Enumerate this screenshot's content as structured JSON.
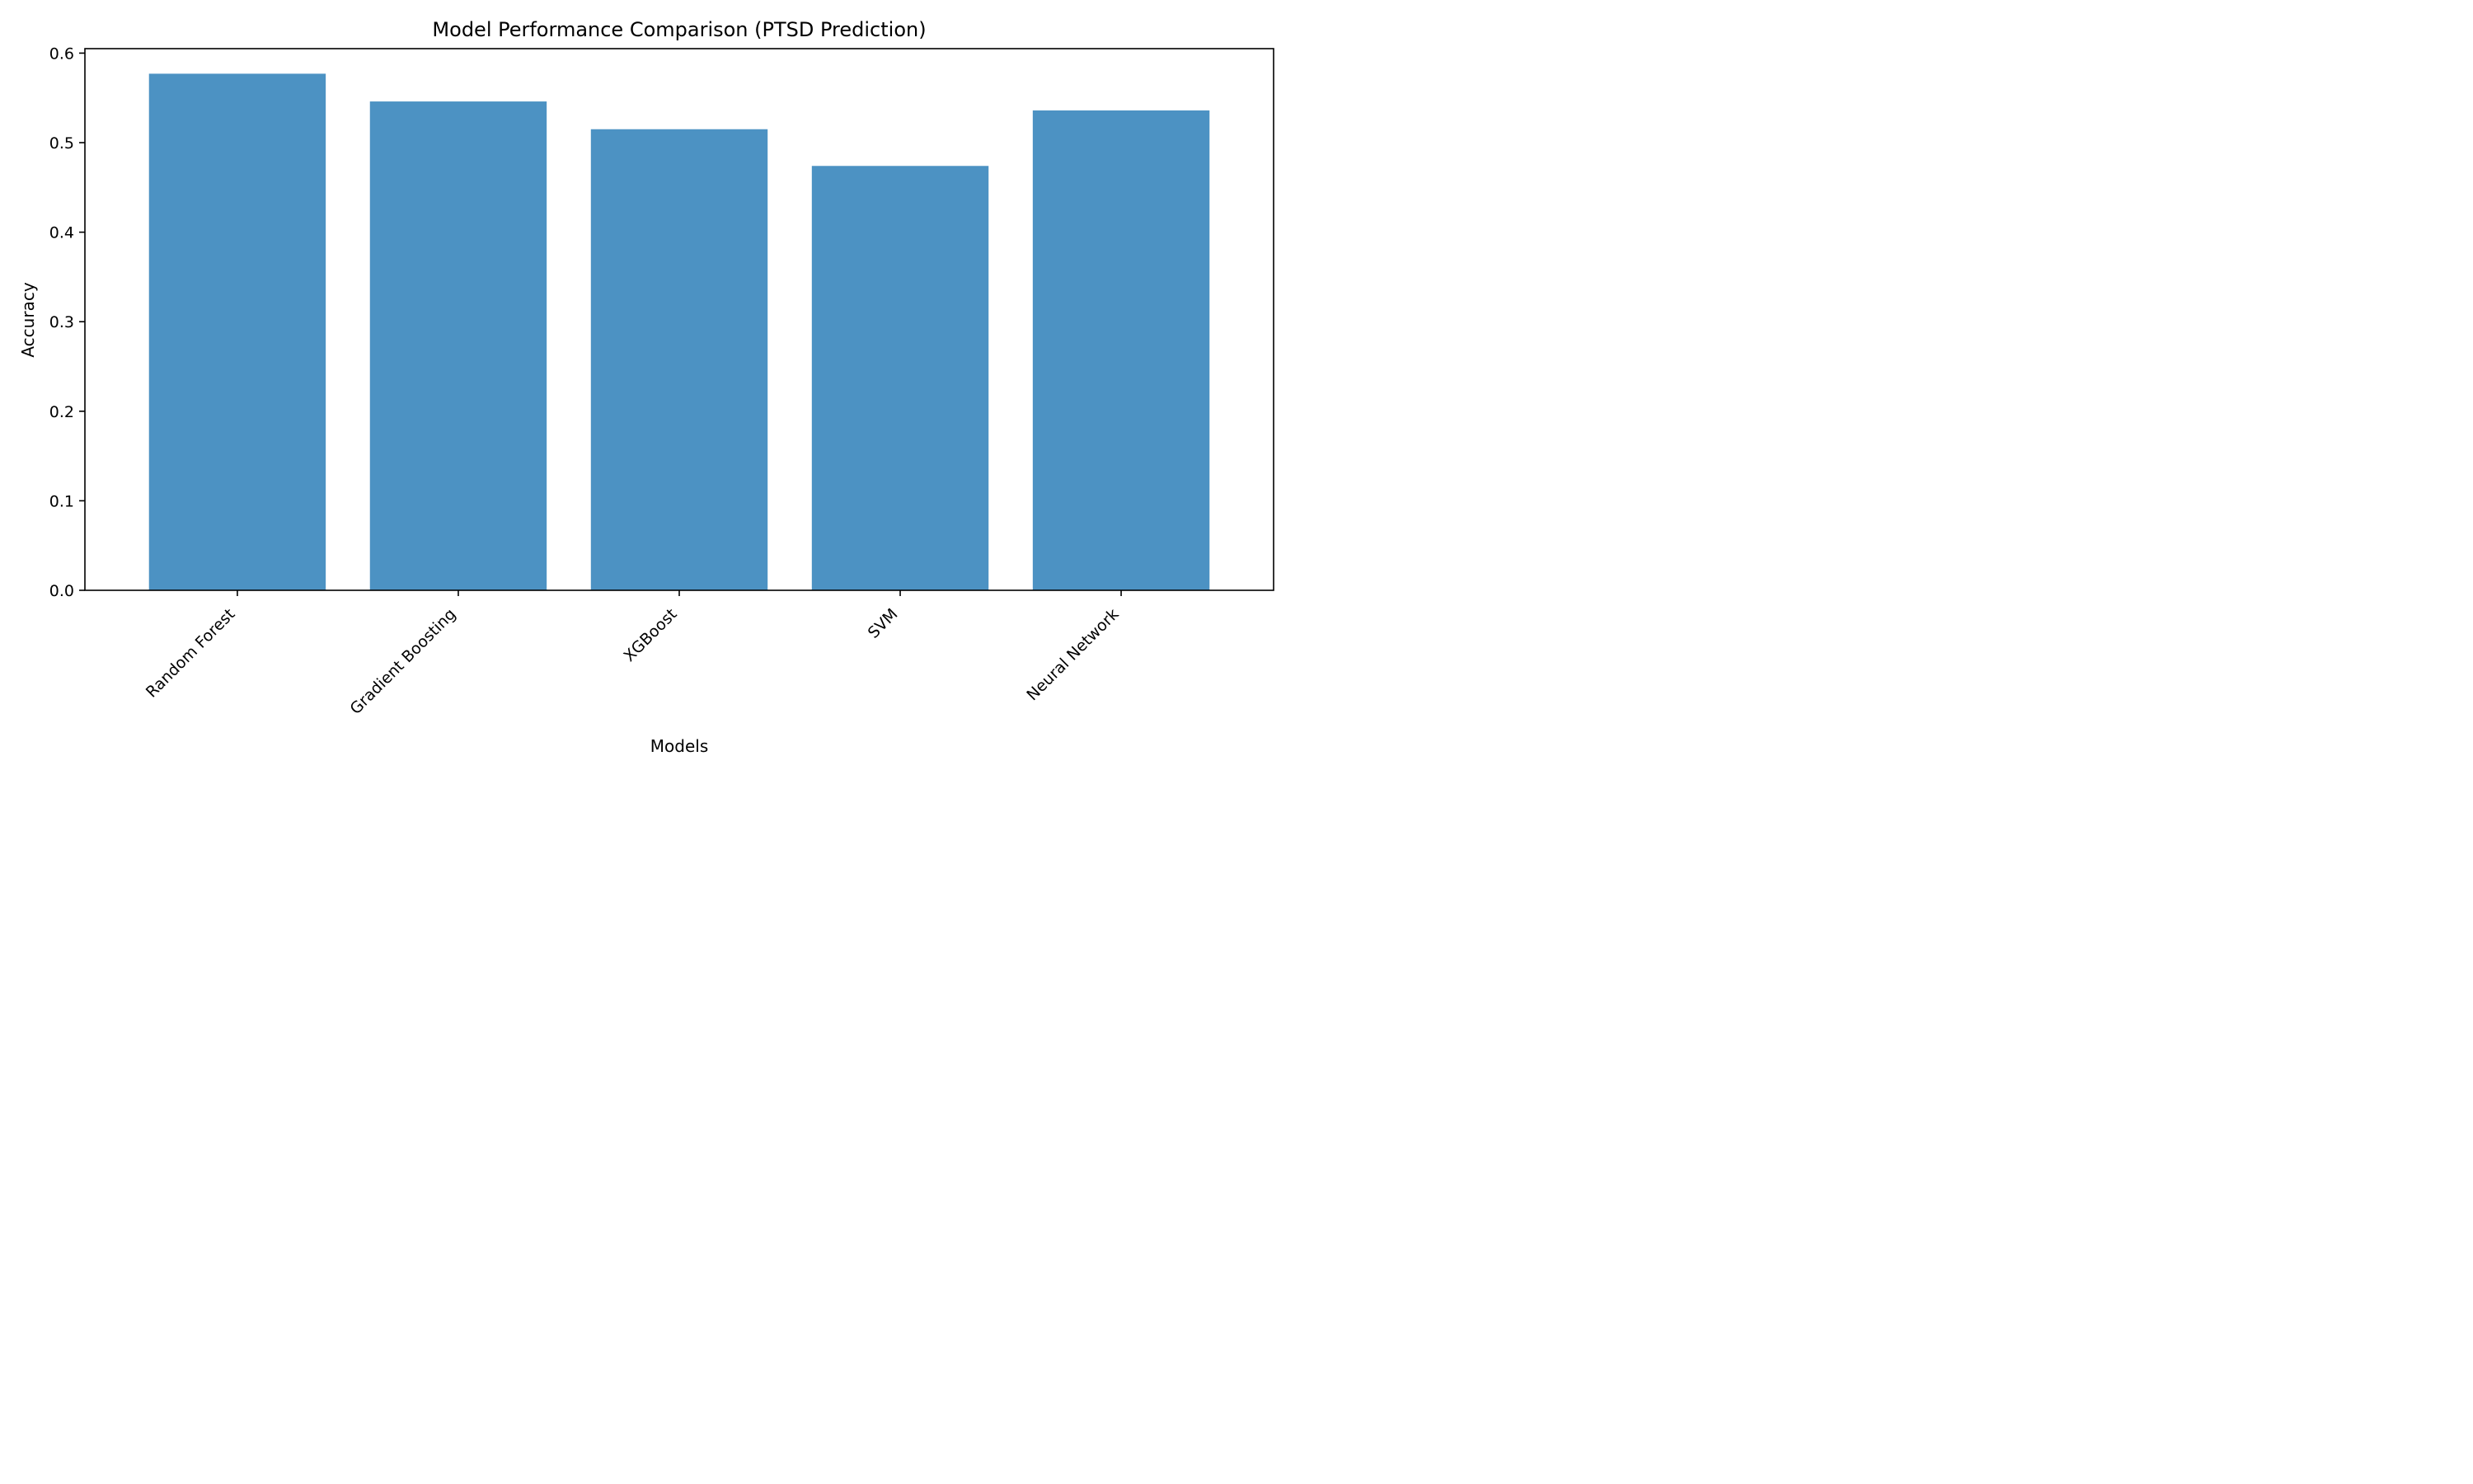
{
  "chart_data": {
    "type": "bar",
    "title": "Model Performance Comparison (PTSD Prediction)",
    "xlabel": "Models",
    "ylabel": "Accuracy",
    "categories": [
      "Random Forest",
      "Gradient Boosting",
      "XGBoost",
      "SVM",
      "Neural Network"
    ],
    "values": [
      0.577,
      0.546,
      0.515,
      0.474,
      0.536
    ],
    "ylim": [
      0,
      0.605
    ],
    "yticks": [
      0.0,
      0.1,
      0.2,
      0.3,
      0.4,
      0.5,
      0.6
    ],
    "ytick_labels": [
      "0.0",
      "0.1",
      "0.2",
      "0.3",
      "0.4",
      "0.5",
      "0.6"
    ],
    "bar_color": "#4c92c3",
    "grid": false,
    "legend": "none"
  }
}
